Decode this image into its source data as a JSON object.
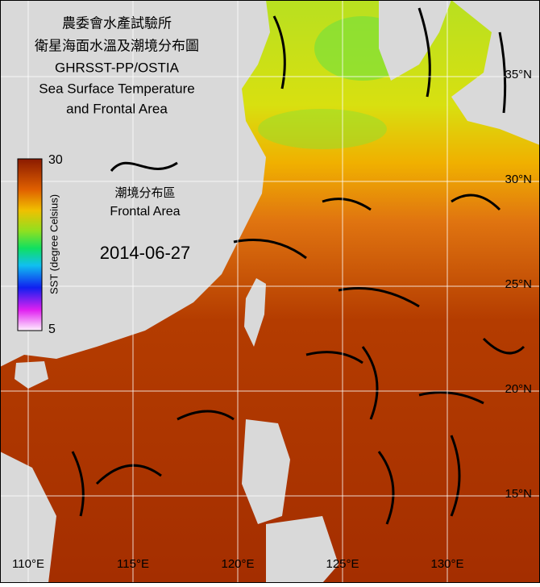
{
  "title": [
    "農委會水產試驗所",
    "衛星海面水溫及潮境分布圖",
    "GHRSST-PP/OSTIA",
    "Sea Surface Temperature",
    "and Frontal Area"
  ],
  "colorbar": {
    "max": "30",
    "min": "5",
    "label": "SST (degree Celsius)"
  },
  "legend": {
    "label_zh": "潮境分布區",
    "label_en": "Frontal Area"
  },
  "date": "2014-06-27",
  "lat_labels": [
    "35°N",
    "30°N",
    "25°N",
    "20°N",
    "15°N"
  ],
  "lon_labels": [
    "110°E",
    "115°E",
    "120°E",
    "125°E",
    "130°E"
  ]
}
